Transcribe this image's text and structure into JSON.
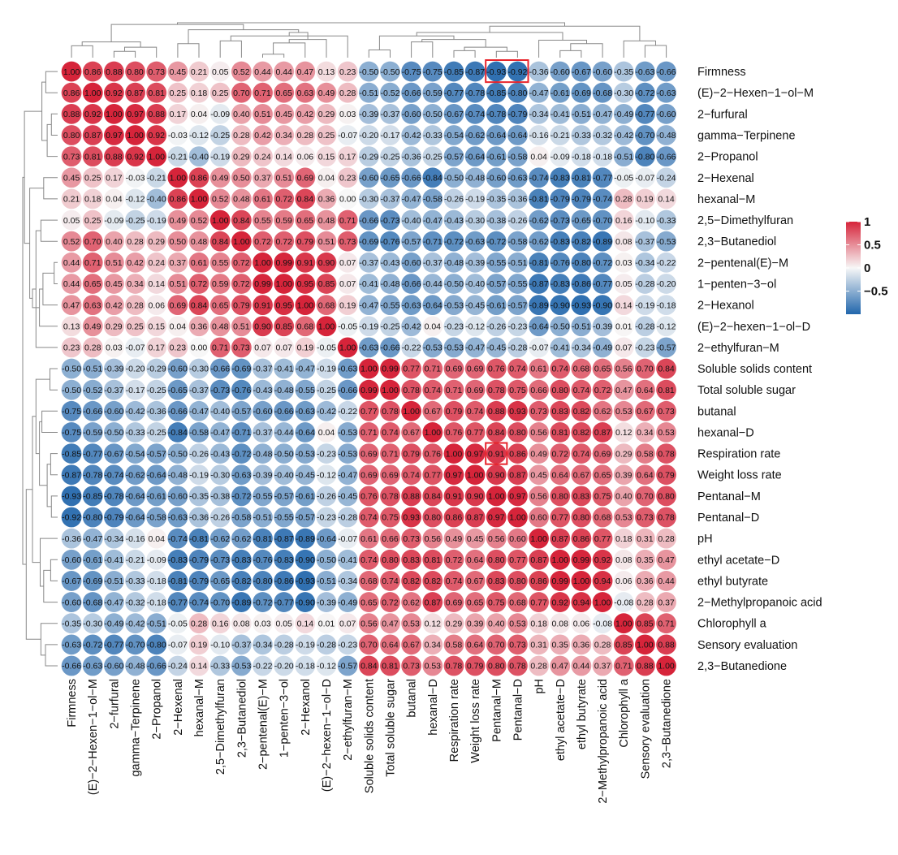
{
  "chart_data": {
    "type": "heatmap",
    "title": "",
    "labels": [
      "Firmness",
      "(E)−2−Hexen−1−ol−M",
      "2−furfural",
      "gamma−Terpinene",
      "2−Propanol",
      "2−Hexenal",
      "hexanal−M",
      "2,5−Dimethylfuran",
      "2,3−Butanediol",
      "2−pentenal(E)−M",
      "1−penten−3−ol",
      "2−Hexanol",
      "(E)−2−hexen−1−ol−D",
      "2−ethylfuran−M",
      "Soluble solids content",
      "Total soluble sugar",
      "butanal",
      "hexanal−D",
      "Respiration rate",
      "Weight loss rate",
      "Pentanal−M",
      "Pentanal−D",
      "pH",
      "ethyl acetate−D",
      "ethyl butyrate",
      "2−Methylpropanoic acid",
      "Chlorophyll a",
      "Sensory evaluation",
      "2,3−Butanedione"
    ],
    "matrix": [
      [
        1.0,
        0.86,
        0.88,
        0.8,
        0.73,
        0.45,
        0.21,
        0.05,
        0.52,
        0.44,
        0.44,
        0.47,
        0.13,
        0.23,
        -0.5,
        -0.5,
        -0.75,
        -0.75,
        -0.85,
        -0.87,
        -0.93,
        -0.92,
        -0.36,
        -0.6,
        -0.67,
        -0.6,
        -0.35,
        -0.63,
        -0.66
      ],
      [
        0.86,
        1.0,
        0.92,
        0.87,
        0.81,
        0.25,
        0.18,
        0.25,
        0.7,
        0.71,
        0.65,
        0.63,
        0.49,
        0.28,
        -0.51,
        -0.52,
        -0.66,
        -0.59,
        -0.77,
        -0.78,
        -0.85,
        -0.8,
        -0.47,
        -0.61,
        -0.69,
        -0.68,
        -0.3,
        -0.72,
        -0.63
      ],
      [
        0.88,
        0.92,
        1.0,
        0.97,
        0.88,
        0.17,
        0.04,
        -0.09,
        0.4,
        0.51,
        0.45,
        0.42,
        0.29,
        0.03,
        -0.39,
        -0.37,
        -0.6,
        -0.5,
        -0.67,
        -0.74,
        -0.78,
        -0.79,
        -0.34,
        -0.41,
        -0.51,
        -0.47,
        -0.49,
        -0.77,
        -0.6
      ],
      [
        0.8,
        0.87,
        0.97,
        1.0,
        0.92,
        -0.03,
        -0.12,
        -0.25,
        0.28,
        0.42,
        0.34,
        0.28,
        0.25,
        -0.07,
        -0.2,
        -0.17,
        -0.42,
        -0.33,
        -0.54,
        -0.62,
        -0.64,
        -0.64,
        -0.16,
        -0.21,
        -0.33,
        -0.32,
        -0.42,
        -0.7,
        -0.48
      ],
      [
        0.73,
        0.81,
        0.88,
        0.92,
        1.0,
        -0.21,
        -0.4,
        -0.19,
        0.29,
        0.24,
        0.14,
        0.06,
        0.15,
        0.17,
        -0.29,
        -0.25,
        -0.36,
        -0.25,
        -0.57,
        -0.64,
        -0.61,
        -0.58,
        0.04,
        -0.09,
        -0.18,
        -0.18,
        -0.51,
        -0.8,
        -0.66
      ],
      [
        0.45,
        0.25,
        0.17,
        -0.03,
        -0.21,
        1.0,
        0.86,
        0.49,
        0.5,
        0.37,
        0.51,
        0.69,
        0.04,
        0.23,
        -0.6,
        -0.65,
        -0.66,
        -0.84,
        -0.5,
        -0.48,
        -0.6,
        -0.63,
        -0.74,
        -0.83,
        -0.81,
        -0.77,
        -0.05,
        -0.07,
        -0.24
      ],
      [
        0.21,
        0.18,
        0.04,
        -0.12,
        -0.4,
        0.86,
        1.0,
        0.52,
        0.48,
        0.61,
        0.72,
        0.84,
        0.36,
        -0.0,
        -0.3,
        -0.37,
        -0.47,
        -0.58,
        -0.26,
        -0.19,
        -0.35,
        -0.36,
        -0.81,
        -0.79,
        -0.79,
        -0.74,
        0.28,
        0.19,
        0.14
      ],
      [
        0.05,
        0.25,
        -0.09,
        -0.25,
        -0.19,
        0.49,
        0.52,
        1.0,
        0.84,
        0.55,
        0.59,
        0.65,
        0.48,
        0.71,
        -0.66,
        -0.73,
        -0.4,
        -0.47,
        -0.43,
        -0.3,
        -0.38,
        -0.26,
        -0.62,
        -0.73,
        -0.65,
        -0.7,
        0.16,
        -0.1,
        -0.33
      ],
      [
        0.52,
        0.7,
        0.4,
        0.28,
        0.29,
        0.5,
        0.48,
        0.84,
        1.0,
        0.72,
        0.72,
        0.79,
        0.51,
        0.73,
        -0.69,
        -0.76,
        -0.57,
        -0.71,
        -0.72,
        -0.63,
        -0.72,
        -0.58,
        -0.62,
        -0.83,
        -0.82,
        -0.89,
        0.08,
        -0.37,
        -0.53
      ],
      [
        0.44,
        0.71,
        0.51,
        0.42,
        0.24,
        0.37,
        0.61,
        0.55,
        0.72,
        1.0,
        0.99,
        0.91,
        0.9,
        0.07,
        -0.37,
        -0.43,
        -0.6,
        -0.37,
        -0.48,
        -0.39,
        -0.55,
        -0.51,
        -0.81,
        -0.76,
        -0.8,
        -0.72,
        0.03,
        -0.34,
        -0.22
      ],
      [
        0.44,
        0.65,
        0.45,
        0.34,
        0.14,
        0.51,
        0.72,
        0.59,
        0.72,
        0.99,
        1.0,
        0.95,
        0.85,
        0.07,
        -0.41,
        -0.48,
        -0.66,
        -0.44,
        -0.5,
        -0.4,
        -0.57,
        -0.55,
        -0.87,
        -0.83,
        -0.86,
        -0.77,
        0.05,
        -0.28,
        -0.2
      ],
      [
        0.47,
        0.63,
        0.42,
        0.28,
        0.06,
        0.69,
        0.84,
        0.65,
        0.79,
        0.91,
        0.95,
        1.0,
        0.68,
        0.19,
        -0.47,
        -0.55,
        -0.63,
        -0.64,
        -0.53,
        -0.45,
        -0.61,
        -0.57,
        -0.89,
        -0.9,
        -0.93,
        -0.9,
        0.14,
        -0.19,
        -0.18
      ],
      [
        0.13,
        0.49,
        0.29,
        0.25,
        0.15,
        0.04,
        0.36,
        0.48,
        0.51,
        0.9,
        0.85,
        0.68,
        1.0,
        -0.05,
        -0.19,
        -0.25,
        -0.42,
        0.04,
        -0.23,
        -0.12,
        -0.26,
        -0.23,
        -0.64,
        -0.5,
        -0.51,
        -0.39,
        0.01,
        -0.28,
        -0.12
      ],
      [
        0.23,
        0.28,
        0.03,
        -0.07,
        0.17,
        0.23,
        -0.0,
        0.71,
        0.73,
        0.07,
        0.07,
        0.19,
        -0.05,
        1.0,
        -0.63,
        -0.66,
        -0.22,
        -0.53,
        -0.53,
        -0.47,
        -0.45,
        -0.28,
        -0.07,
        -0.41,
        -0.34,
        -0.49,
        0.07,
        -0.23,
        -0.57
      ],
      [
        -0.5,
        -0.51,
        -0.39,
        -0.2,
        -0.29,
        -0.6,
        -0.3,
        -0.66,
        -0.69,
        -0.37,
        -0.41,
        -0.47,
        -0.19,
        -0.63,
        1.0,
        0.99,
        0.77,
        0.71,
        0.69,
        0.69,
        0.76,
        0.74,
        0.61,
        0.74,
        0.68,
        0.65,
        0.56,
        0.7,
        0.84
      ],
      [
        -0.5,
        -0.52,
        -0.37,
        -0.17,
        -0.25,
        -0.65,
        -0.37,
        -0.73,
        -0.76,
        -0.43,
        -0.48,
        -0.55,
        -0.25,
        -0.66,
        0.99,
        1.0,
        0.78,
        0.74,
        0.71,
        0.69,
        0.78,
        0.75,
        0.66,
        0.8,
        0.74,
        0.72,
        0.47,
        0.64,
        0.81
      ],
      [
        -0.75,
        -0.66,
        -0.6,
        -0.42,
        -0.36,
        -0.66,
        -0.47,
        -0.4,
        -0.57,
        -0.6,
        -0.66,
        -0.63,
        -0.42,
        -0.22,
        0.77,
        0.78,
        1.0,
        0.67,
        0.79,
        0.74,
        0.88,
        0.93,
        0.73,
        0.83,
        0.82,
        0.62,
        0.53,
        0.67,
        0.73
      ],
      [
        -0.75,
        -0.59,
        -0.5,
        -0.33,
        -0.25,
        -0.84,
        -0.58,
        -0.47,
        -0.71,
        -0.37,
        -0.44,
        -0.64,
        0.04,
        -0.53,
        0.71,
        0.74,
        0.67,
        1.0,
        0.76,
        0.77,
        0.84,
        0.8,
        0.56,
        0.81,
        0.82,
        0.87,
        0.12,
        0.34,
        0.53
      ],
      [
        -0.85,
        -0.77,
        -0.67,
        -0.54,
        -0.57,
        -0.5,
        -0.26,
        -0.43,
        -0.72,
        -0.48,
        -0.5,
        -0.53,
        -0.23,
        -0.53,
        0.69,
        0.71,
        0.79,
        0.76,
        1.0,
        0.97,
        0.91,
        0.86,
        0.49,
        0.72,
        0.74,
        0.69,
        0.29,
        0.58,
        0.78
      ],
      [
        -0.87,
        -0.78,
        -0.74,
        -0.62,
        -0.64,
        -0.48,
        -0.19,
        -0.3,
        -0.63,
        -0.39,
        -0.4,
        -0.45,
        -0.12,
        -0.47,
        0.69,
        0.69,
        0.74,
        0.77,
        0.97,
        1.0,
        0.9,
        0.87,
        0.45,
        0.64,
        0.67,
        0.65,
        0.39,
        0.64,
        0.79
      ],
      [
        -0.93,
        -0.85,
        -0.78,
        -0.64,
        -0.61,
        -0.6,
        -0.35,
        -0.38,
        -0.72,
        -0.55,
        -0.57,
        -0.61,
        -0.26,
        -0.45,
        0.76,
        0.78,
        0.88,
        0.84,
        0.91,
        0.9,
        1.0,
        0.97,
        0.56,
        0.8,
        0.83,
        0.75,
        0.4,
        0.7,
        0.8
      ],
      [
        -0.92,
        -0.8,
        -0.79,
        -0.64,
        -0.58,
        -0.63,
        -0.36,
        -0.26,
        -0.58,
        -0.51,
        -0.55,
        -0.57,
        -0.23,
        -0.28,
        0.74,
        0.75,
        0.93,
        0.8,
        0.86,
        0.87,
        0.97,
        1.0,
        0.6,
        0.77,
        0.8,
        0.68,
        0.53,
        0.73,
        0.78
      ],
      [
        -0.36,
        -0.47,
        -0.34,
        -0.16,
        0.04,
        -0.74,
        -0.81,
        -0.62,
        -0.62,
        -0.81,
        -0.87,
        -0.89,
        -0.64,
        -0.07,
        0.61,
        0.66,
        0.73,
        0.56,
        0.49,
        0.45,
        0.56,
        0.6,
        1.0,
        0.87,
        0.86,
        0.77,
        0.18,
        0.31,
        0.28
      ],
      [
        -0.6,
        -0.61,
        -0.41,
        -0.21,
        -0.09,
        -0.83,
        -0.79,
        -0.73,
        -0.83,
        -0.76,
        -0.83,
        -0.9,
        -0.5,
        -0.41,
        0.74,
        0.8,
        0.83,
        0.81,
        0.72,
        0.64,
        0.8,
        0.77,
        0.87,
        1.0,
        0.99,
        0.92,
        0.08,
        0.35,
        0.47
      ],
      [
        -0.67,
        -0.69,
        -0.51,
        -0.33,
        -0.18,
        -0.81,
        -0.79,
        -0.65,
        -0.82,
        -0.8,
        -0.86,
        -0.93,
        -0.51,
        -0.34,
        0.68,
        0.74,
        0.82,
        0.82,
        0.74,
        0.67,
        0.83,
        0.8,
        0.86,
        0.99,
        1.0,
        0.94,
        0.06,
        0.36,
        0.44
      ],
      [
        -0.6,
        -0.68,
        -0.47,
        -0.32,
        -0.18,
        -0.77,
        -0.74,
        -0.7,
        -0.89,
        -0.72,
        -0.77,
        -0.9,
        -0.39,
        -0.49,
        0.65,
        0.72,
        0.62,
        0.87,
        0.69,
        0.65,
        0.75,
        0.68,
        0.77,
        0.92,
        0.94,
        1.0,
        -0.08,
        0.28,
        0.37
      ],
      [
        -0.35,
        -0.3,
        -0.49,
        -0.42,
        -0.51,
        -0.05,
        0.28,
        0.16,
        0.08,
        0.03,
        0.05,
        0.14,
        0.01,
        0.07,
        0.56,
        0.47,
        0.53,
        0.12,
        0.29,
        0.39,
        0.4,
        0.53,
        0.18,
        0.08,
        0.06,
        -0.08,
        1.0,
        0.85,
        0.71
      ],
      [
        -0.63,
        -0.72,
        -0.77,
        -0.7,
        -0.8,
        -0.07,
        0.19,
        -0.1,
        -0.37,
        -0.34,
        -0.28,
        -0.19,
        -0.28,
        -0.23,
        0.7,
        0.64,
        0.67,
        0.34,
        0.58,
        0.64,
        0.7,
        0.73,
        0.31,
        0.35,
        0.36,
        0.28,
        0.85,
        1.0,
        0.88
      ],
      [
        -0.66,
        -0.63,
        -0.6,
        -0.48,
        -0.66,
        -0.24,
        0.14,
        -0.33,
        -0.53,
        -0.22,
        -0.2,
        -0.18,
        -0.12,
        -0.57,
        0.84,
        0.81,
        0.73,
        0.53,
        0.78,
        0.79,
        0.8,
        0.78,
        0.28,
        0.47,
        0.44,
        0.37,
        0.71,
        0.88,
        1.0
      ]
    ],
    "highlighted_cells": [
      [
        0,
        20
      ],
      [
        0,
        21
      ],
      [
        18,
        20
      ]
    ],
    "color_scale": {
      "low": -1,
      "mid": 0,
      "high": 1,
      "low_color": "#2166ac",
      "mid_color": "#f7f7f7",
      "high_color": "#d6243a"
    },
    "legend": {
      "tick_labels": [
        "1",
        "0.5",
        "0",
        "−0.5"
      ],
      "tick_values": [
        1,
        0.5,
        0,
        -0.5
      ]
    },
    "dendrogram": "hierarchical clustering on rows and columns",
    "xlabel": "",
    "ylabel": ""
  },
  "colors": {
    "highlight": "#e8232b",
    "tree": "#888888"
  }
}
